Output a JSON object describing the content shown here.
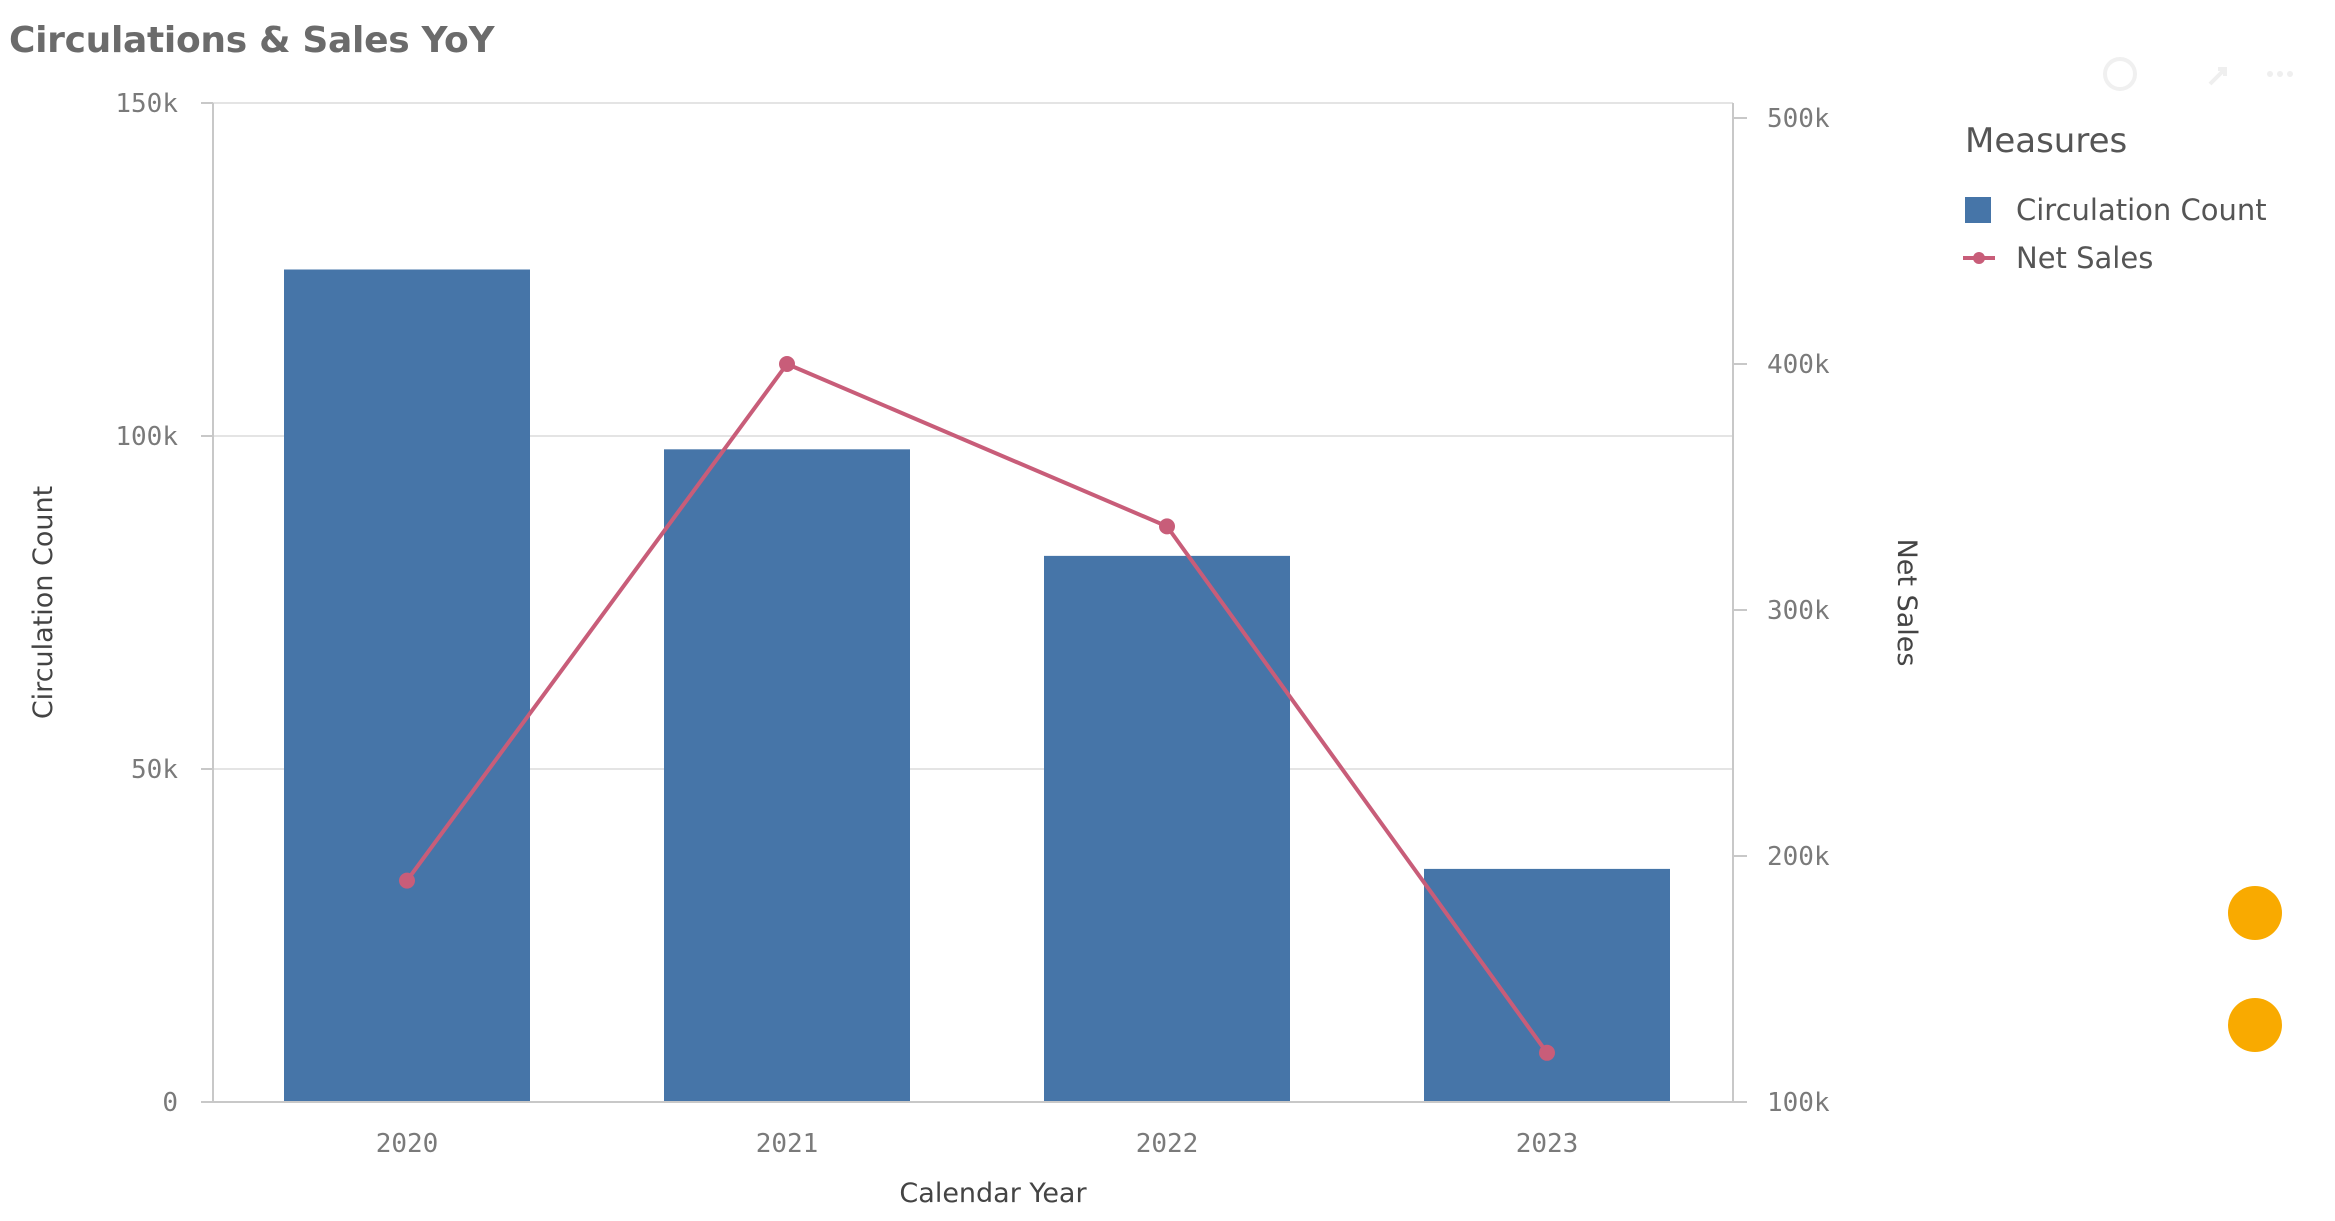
{
  "title": "Circulations & Sales YoY",
  "icons": {
    "toolbar": [
      "zoom-icon",
      "expand-icon",
      "more-icon"
    ]
  },
  "colors": {
    "bar": "#4675A8",
    "line": "#C85D79",
    "grid": "#e4e4e4",
    "axis": "#c8c8c8",
    "marker": "#F9AA00"
  },
  "chart_data": {
    "type": "bar",
    "title": "Circulations & Sales YoY",
    "xlabel": "Calendar Year",
    "ylabel": "Circulation Count",
    "y2label": "Net Sales",
    "categories": [
      "2020",
      "2021",
      "2022",
      "2023"
    ],
    "series": [
      {
        "name": "Circulation Count",
        "type": "bar",
        "axis": "left",
        "values": [
          125000,
          98000,
          82000,
          35000
        ]
      },
      {
        "name": "Net Sales",
        "type": "line",
        "axis": "right",
        "values": [
          190000,
          400000,
          334000,
          120000
        ]
      }
    ],
    "ylim": [
      0,
      150000
    ],
    "y2lim": [
      100000,
      500000
    ],
    "yticks": [
      {
        "value": 0,
        "label": "0"
      },
      {
        "value": 50000,
        "label": "50k"
      },
      {
        "value": 100000,
        "label": "100k"
      },
      {
        "value": 150000,
        "label": "150k"
      }
    ],
    "y2ticks": [
      {
        "value": 100000,
        "label": "100k"
      },
      {
        "value": 200000,
        "label": "200k"
      },
      {
        "value": 300000,
        "label": "300k"
      },
      {
        "value": 400000,
        "label": "400k"
      },
      {
        "value": 500000,
        "label": "500k"
      }
    ],
    "grid": true,
    "legend": {
      "title": "Measures",
      "position": "top-right",
      "items": [
        "Circulation Count",
        "Net Sales"
      ]
    }
  }
}
